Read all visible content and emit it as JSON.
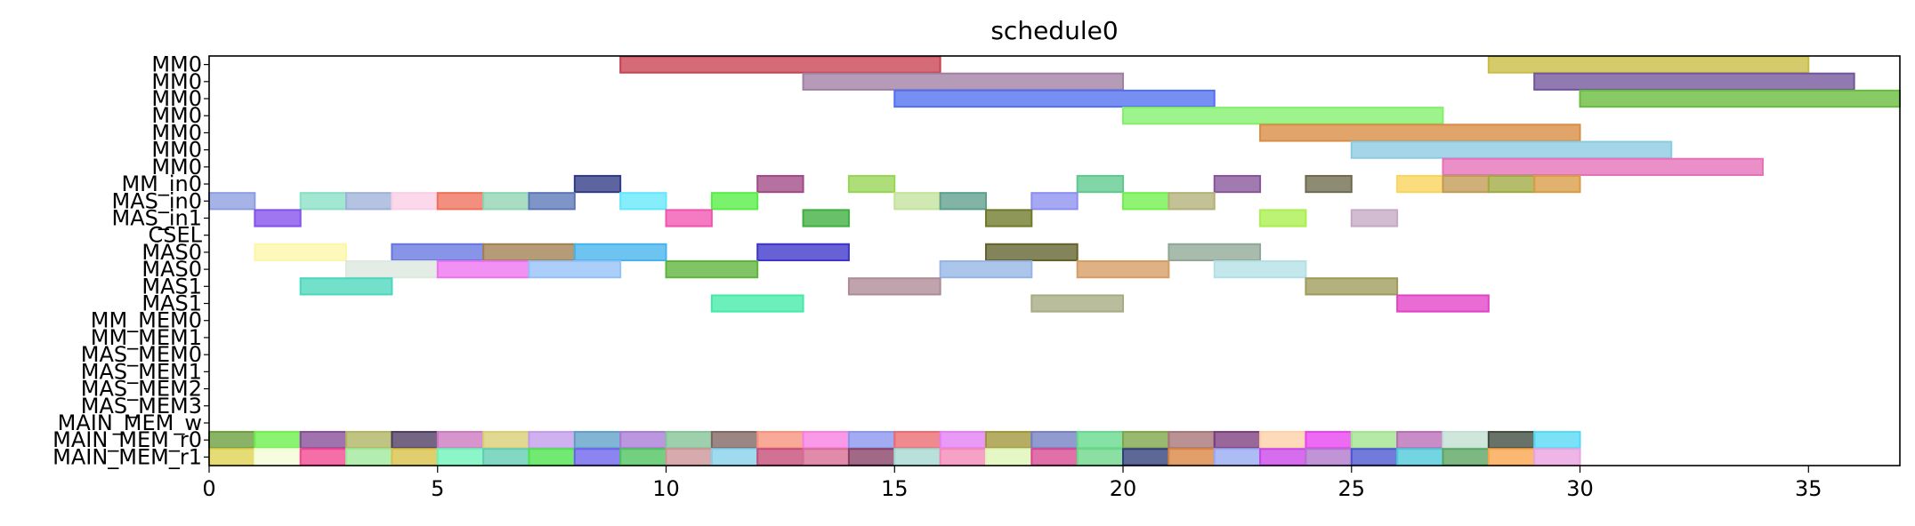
{
  "chart_data": {
    "type": "gantt",
    "title": "schedule0",
    "xlim": [
      0,
      37
    ],
    "xticks": [
      0,
      5,
      10,
      15,
      20,
      25,
      30,
      35
    ],
    "rows": [
      "MM0",
      "MM0",
      "MM0",
      "MM0",
      "MM0",
      "MM0",
      "MM0",
      "MM_in0",
      "MAS_in0",
      "MAS_in1",
      "CSEL",
      "MAS0",
      "MAS0",
      "MAS1",
      "MAS1",
      "MM_MEM0",
      "MM_MEM1",
      "MAS_MEM0",
      "MAS_MEM1",
      "MAS_MEM2",
      "MAS_MEM3",
      "MAIN_MEM_w",
      "MAIN_MEM_r0",
      "MAIN_MEM_r1"
    ],
    "bars": [
      {
        "row": 0,
        "start": 9,
        "end": 16,
        "color": "#c8414f"
      },
      {
        "row": 0,
        "start": 28,
        "end": 35,
        "color": "#c9bd43"
      },
      {
        "row": 1,
        "start": 13,
        "end": 20,
        "color": "#a07fa3"
      },
      {
        "row": 1,
        "start": 29,
        "end": 36,
        "color": "#72559a"
      },
      {
        "row": 2,
        "start": 15,
        "end": 22,
        "color": "#5170f0"
      },
      {
        "row": 2,
        "start": 30,
        "end": 37,
        "color": "#67bd3b"
      },
      {
        "row": 3,
        "start": 20,
        "end": 27,
        "color": "#82f06c"
      },
      {
        "row": 4,
        "start": 23,
        "end": 30,
        "color": "#d88c42"
      },
      {
        "row": 5,
        "start": 25,
        "end": 32,
        "color": "#8acbe0"
      },
      {
        "row": 6,
        "start": 27,
        "end": 34,
        "color": "#e670b9"
      },
      {
        "row": 7,
        "start": 8,
        "end": 9,
        "color": "#303a85"
      },
      {
        "row": 7,
        "start": 12,
        "end": 13,
        "color": "#a04a86"
      },
      {
        "row": 7,
        "start": 14,
        "end": 15,
        "color": "#97d555"
      },
      {
        "row": 7,
        "start": 19,
        "end": 20,
        "color": "#5ec98e"
      },
      {
        "row": 7,
        "start": 22,
        "end": 23,
        "color": "#86559a"
      },
      {
        "row": 7,
        "start": 24,
        "end": 25,
        "color": "#6e6a4e"
      },
      {
        "row": 7,
        "start": 26,
        "end": 27,
        "color": "#fbd458"
      },
      {
        "row": 7,
        "start": 27,
        "end": 28,
        "color": "#c29a53"
      },
      {
        "row": 7,
        "start": 28,
        "end": 29,
        "color": "#a0aa40"
      },
      {
        "row": 7,
        "start": 29,
        "end": 30,
        "color": "#d99b45"
      },
      {
        "row": 8,
        "start": 0,
        "end": 1,
        "color": "#8d9ee0"
      },
      {
        "row": 8,
        "start": 2,
        "end": 3,
        "color": "#89dfc4"
      },
      {
        "row": 8,
        "start": 3,
        "end": 4,
        "color": "#9eb2d8"
      },
      {
        "row": 8,
        "start": 4,
        "end": 5,
        "color": "#fbcde6"
      },
      {
        "row": 8,
        "start": 5,
        "end": 6,
        "color": "#f06f5a"
      },
      {
        "row": 8,
        "start": 6,
        "end": 7,
        "color": "#8fd3b2"
      },
      {
        "row": 8,
        "start": 7,
        "end": 8,
        "color": "#5b76b7"
      },
      {
        "row": 8,
        "start": 9,
        "end": 10,
        "color": "#63e8fb"
      },
      {
        "row": 8,
        "start": 11,
        "end": 12,
        "color": "#55ee45"
      },
      {
        "row": 8,
        "start": 15,
        "end": 16,
        "color": "#c3e29b"
      },
      {
        "row": 8,
        "start": 16,
        "end": 17,
        "color": "#5e9f8c"
      },
      {
        "row": 8,
        "start": 18,
        "end": 19,
        "color": "#8d8ff0"
      },
      {
        "row": 8,
        "start": 20,
        "end": 21,
        "color": "#6ff04b"
      },
      {
        "row": 8,
        "start": 21,
        "end": 22,
        "color": "#b2b079"
      },
      {
        "row": 9,
        "start": 1,
        "end": 2,
        "color": "#8350ee"
      },
      {
        "row": 9,
        "start": 10,
        "end": 11,
        "color": "#f154b0"
      },
      {
        "row": 9,
        "start": 13,
        "end": 14,
        "color": "#3daf3e"
      },
      {
        "row": 9,
        "start": 17,
        "end": 18,
        "color": "#6e7a28"
      },
      {
        "row": 9,
        "start": 23,
        "end": 24,
        "color": "#a9f04c"
      },
      {
        "row": 9,
        "start": 25,
        "end": 26,
        "color": "#c5a9c4"
      },
      {
        "row": 11,
        "start": 1,
        "end": 3,
        "color": "#fdf6a9"
      },
      {
        "row": 11,
        "start": 4,
        "end": 6,
        "color": "#6676e0"
      },
      {
        "row": 11,
        "start": 6,
        "end": 8,
        "color": "#a0804f"
      },
      {
        "row": 11,
        "start": 8,
        "end": 10,
        "color": "#45b3ec"
      },
      {
        "row": 11,
        "start": 12,
        "end": 14,
        "color": "#3c35c9"
      },
      {
        "row": 11,
        "start": 17,
        "end": 19,
        "color": "#62622b"
      },
      {
        "row": 11,
        "start": 21,
        "end": 23,
        "color": "#8fa896"
      },
      {
        "row": 12,
        "start": 3,
        "end": 5,
        "color": "#dde8de"
      },
      {
        "row": 12,
        "start": 5,
        "end": 7,
        "color": "#ec72ef"
      },
      {
        "row": 12,
        "start": 7,
        "end": 9,
        "color": "#93c1f6"
      },
      {
        "row": 12,
        "start": 10,
        "end": 12,
        "color": "#5eb43a"
      },
      {
        "row": 12,
        "start": 16,
        "end": 18,
        "color": "#94b5e6"
      },
      {
        "row": 12,
        "start": 19,
        "end": 21,
        "color": "#d59c63"
      },
      {
        "row": 12,
        "start": 22,
        "end": 24,
        "color": "#b3e0e6"
      },
      {
        "row": 13,
        "start": 2,
        "end": 4,
        "color": "#4ad7bc"
      },
      {
        "row": 13,
        "start": 14,
        "end": 16,
        "color": "#ad8a96"
      },
      {
        "row": 13,
        "start": 24,
        "end": 26,
        "color": "#9d9b5a"
      },
      {
        "row": 14,
        "start": 11,
        "end": 13,
        "color": "#43eaa7"
      },
      {
        "row": 14,
        "start": 18,
        "end": 20,
        "color": "#a7ab81"
      },
      {
        "row": 14,
        "start": 26,
        "end": 28,
        "color": "#e242c8"
      },
      {
        "row": 22,
        "start": 0,
        "end": 1,
        "color": "#6a9d3c"
      },
      {
        "row": 22,
        "start": 1,
        "end": 2,
        "color": "#6cef4a"
      },
      {
        "row": 22,
        "start": 2,
        "end": 3,
        "color": "#864c97"
      },
      {
        "row": 22,
        "start": 3,
        "end": 4,
        "color": "#aeb45f"
      },
      {
        "row": 22,
        "start": 4,
        "end": 5,
        "color": "#4d3b5f"
      },
      {
        "row": 22,
        "start": 5,
        "end": 6,
        "color": "#cc77c0"
      },
      {
        "row": 22,
        "start": 6,
        "end": 7,
        "color": "#d8cd72"
      },
      {
        "row": 22,
        "start": 7,
        "end": 8,
        "color": "#c39bec"
      },
      {
        "row": 22,
        "start": 8,
        "end": 9,
        "color": "#5f9fc7"
      },
      {
        "row": 22,
        "start": 9,
        "end": 10,
        "color": "#a77ad6"
      },
      {
        "row": 22,
        "start": 10,
        "end": 11,
        "color": "#84c396"
      },
      {
        "row": 22,
        "start": 11,
        "end": 12,
        "color": "#7f6461"
      },
      {
        "row": 22,
        "start": 12,
        "end": 13,
        "color": "#f7917b"
      },
      {
        "row": 22,
        "start": 13,
        "end": 14,
        "color": "#f67ee0"
      },
      {
        "row": 22,
        "start": 14,
        "end": 15,
        "color": "#8994ef"
      },
      {
        "row": 22,
        "start": 15,
        "end": 16,
        "color": "#ea6a6e"
      },
      {
        "row": 22,
        "start": 16,
        "end": 17,
        "color": "#e27ef4"
      },
      {
        "row": 22,
        "start": 17,
        "end": 18,
        "color": "#9f9637"
      },
      {
        "row": 22,
        "start": 18,
        "end": 19,
        "color": "#737fc3"
      },
      {
        "row": 22,
        "start": 19,
        "end": 20,
        "color": "#64d88a"
      },
      {
        "row": 22,
        "start": 20,
        "end": 21,
        "color": "#7ea548"
      },
      {
        "row": 22,
        "start": 21,
        "end": 22,
        "color": "#a67376"
      },
      {
        "row": 22,
        "start": 22,
        "end": 23,
        "color": "#7c3c7c"
      },
      {
        "row": 22,
        "start": 23,
        "end": 24,
        "color": "#fdd0a5"
      },
      {
        "row": 22,
        "start": 24,
        "end": 25,
        "color": "#e840ef"
      },
      {
        "row": 22,
        "start": 25,
        "end": 26,
        "color": "#9fe38d"
      },
      {
        "row": 22,
        "start": 26,
        "end": 27,
        "color": "#b86bb6"
      },
      {
        "row": 22,
        "start": 27,
        "end": 28,
        "color": "#c1dfd4"
      },
      {
        "row": 22,
        "start": 28,
        "end": 29,
        "color": "#3e4a3e"
      },
      {
        "row": 22,
        "start": 29,
        "end": 30,
        "color": "#55d8f5"
      },
      {
        "row": 23,
        "start": 0,
        "end": 1,
        "color": "#dfd24e"
      },
      {
        "row": 23,
        "start": 1,
        "end": 2,
        "color": "#f3fdd6"
      },
      {
        "row": 23,
        "start": 2,
        "end": 3,
        "color": "#f2458f"
      },
      {
        "row": 23,
        "start": 3,
        "end": 4,
        "color": "#9ee99a"
      },
      {
        "row": 23,
        "start": 4,
        "end": 5,
        "color": "#d9c047"
      },
      {
        "row": 23,
        "start": 5,
        "end": 6,
        "color": "#6cf4b8"
      },
      {
        "row": 23,
        "start": 6,
        "end": 7,
        "color": "#5fcdb2"
      },
      {
        "row": 23,
        "start": 7,
        "end": 8,
        "color": "#4ae34b"
      },
      {
        "row": 23,
        "start": 8,
        "end": 9,
        "color": "#6b62ec"
      },
      {
        "row": 23,
        "start": 9,
        "end": 10,
        "color": "#4cc35e"
      },
      {
        "row": 23,
        "start": 10,
        "end": 11,
        "color": "#cc9496"
      },
      {
        "row": 23,
        "start": 11,
        "end": 12,
        "color": "#85d0ea"
      },
      {
        "row": 23,
        "start": 12,
        "end": 13,
        "color": "#c44a77"
      },
      {
        "row": 23,
        "start": 13,
        "end": 14,
        "color": "#d96a93"
      },
      {
        "row": 23,
        "start": 14,
        "end": 15,
        "color": "#863f63"
      },
      {
        "row": 23,
        "start": 15,
        "end": 16,
        "color": "#a4d8d2"
      },
      {
        "row": 23,
        "start": 16,
        "end": 17,
        "color": "#f487b6"
      },
      {
        "row": 23,
        "start": 17,
        "end": 18,
        "color": "#dff5b6"
      },
      {
        "row": 23,
        "start": 18,
        "end": 19,
        "color": "#d8468f"
      },
      {
        "row": 23,
        "start": 19,
        "end": 20,
        "color": "#6ad688"
      },
      {
        "row": 23,
        "start": 20,
        "end": 21,
        "color": "#2f3e78"
      },
      {
        "row": 23,
        "start": 21,
        "end": 22,
        "color": "#db843f"
      },
      {
        "row": 23,
        "start": 22,
        "end": 23,
        "color": "#97a9f3"
      },
      {
        "row": 23,
        "start": 23,
        "end": 24,
        "color": "#c944e9"
      },
      {
        "row": 23,
        "start": 24,
        "end": 25,
        "color": "#b075cc"
      },
      {
        "row": 23,
        "start": 25,
        "end": 26,
        "color": "#4a55cf"
      },
      {
        "row": 23,
        "start": 26,
        "end": 27,
        "color": "#4ac9d8"
      },
      {
        "row": 23,
        "start": 27,
        "end": 28,
        "color": "#58a35f"
      },
      {
        "row": 23,
        "start": 28,
        "end": 29,
        "color": "#f8a44a"
      },
      {
        "row": 23,
        "start": 29,
        "end": 30,
        "color": "#e9a2e0"
      }
    ]
  }
}
